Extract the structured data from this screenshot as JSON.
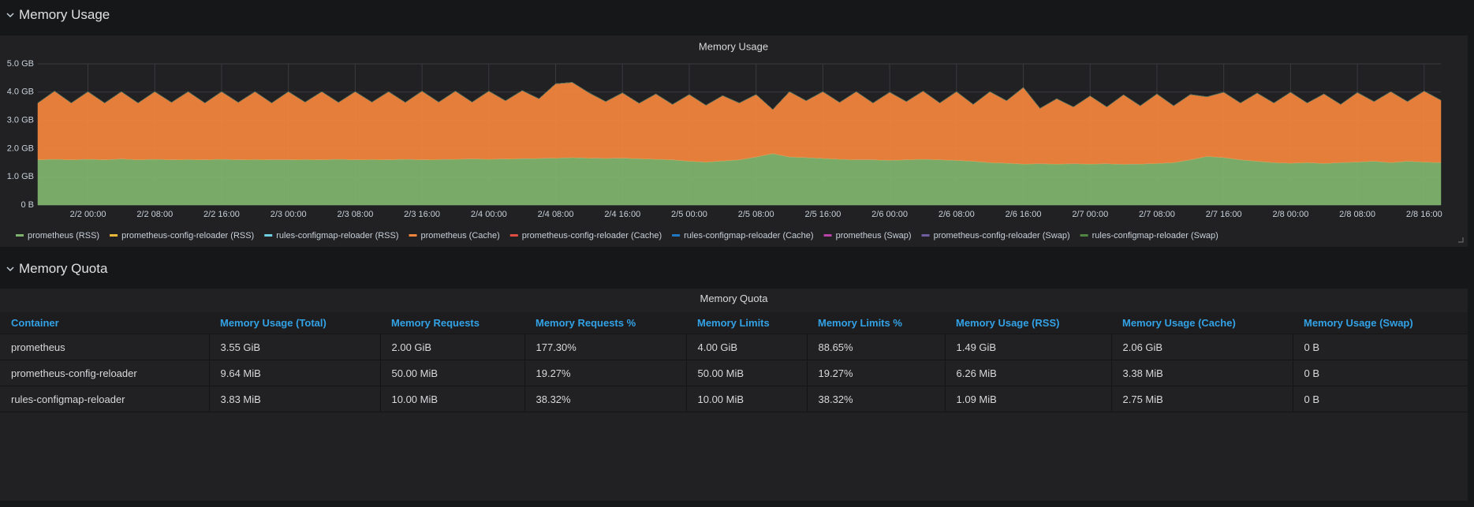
{
  "rows": [
    {
      "title": "Memory Usage"
    },
    {
      "title": "Memory Quota"
    }
  ],
  "chart_data": {
    "type": "area",
    "title": "Memory Usage",
    "stacked": true,
    "grid": true,
    "x": [
      "2/1 18:00",
      "2/1 20:00",
      "2/1 22:00",
      "2/2 00:00",
      "2/2 02:00",
      "2/2 04:00",
      "2/2 06:00",
      "2/2 08:00",
      "2/2 10:00",
      "2/2 12:00",
      "2/2 14:00",
      "2/2 16:00",
      "2/2 18:00",
      "2/2 20:00",
      "2/2 22:00",
      "2/3 00:00",
      "2/3 02:00",
      "2/3 04:00",
      "2/3 06:00",
      "2/3 08:00",
      "2/3 10:00",
      "2/3 12:00",
      "2/3 14:00",
      "2/3 16:00",
      "2/3 18:00",
      "2/3 20:00",
      "2/3 22:00",
      "2/4 00:00",
      "2/4 02:00",
      "2/4 04:00",
      "2/4 06:00",
      "2/4 08:00",
      "2/4 10:00",
      "2/4 12:00",
      "2/4 14:00",
      "2/4 16:00",
      "2/4 18:00",
      "2/4 20:00",
      "2/4 22:00",
      "2/5 00:00",
      "2/5 02:00",
      "2/5 04:00",
      "2/5 06:00",
      "2/5 08:00",
      "2/5 10:00",
      "2/5 12:00",
      "2/5 14:00",
      "2/5 16:00",
      "2/5 18:00",
      "2/5 20:00",
      "2/5 22:00",
      "2/6 00:00",
      "2/6 02:00",
      "2/6 04:00",
      "2/6 06:00",
      "2/6 08:00",
      "2/6 10:00",
      "2/6 12:00",
      "2/6 14:00",
      "2/6 16:00",
      "2/6 18:00",
      "2/6 20:00",
      "2/6 22:00",
      "2/7 00:00",
      "2/7 02:00",
      "2/7 04:00",
      "2/7 06:00",
      "2/7 08:00",
      "2/7 10:00",
      "2/7 12:00",
      "2/7 14:00",
      "2/7 16:00",
      "2/7 18:00",
      "2/7 20:00",
      "2/7 22:00",
      "2/8 00:00",
      "2/8 02:00",
      "2/8 04:00",
      "2/8 06:00",
      "2/8 08:00",
      "2/8 10:00",
      "2/8 12:00",
      "2/8 14:00",
      "2/8 16:00",
      "2/8 18:00"
    ],
    "xticks": [
      "2/2 00:00",
      "2/2 08:00",
      "2/2 16:00",
      "2/3 00:00",
      "2/3 08:00",
      "2/3 16:00",
      "2/4 00:00",
      "2/4 08:00",
      "2/4 16:00",
      "2/5 00:00",
      "2/5 08:00",
      "2/5 16:00",
      "2/6 00:00",
      "2/6 08:00",
      "2/6 16:00",
      "2/7 00:00",
      "2/7 08:00",
      "2/7 16:00",
      "2/8 00:00",
      "2/8 08:00",
      "2/8 16:00"
    ],
    "ylim": [
      0,
      5
    ],
    "yticks": [
      {
        "value": 0,
        "label": "0 B"
      },
      {
        "value": 1,
        "label": "1.0 GB"
      },
      {
        "value": 2,
        "label": "2.0 GB"
      },
      {
        "value": 3,
        "label": "3.0 GB"
      },
      {
        "value": 4,
        "label": "4.0 GB"
      },
      {
        "value": 5,
        "label": "5.0 GB"
      }
    ],
    "series": [
      {
        "name": "prometheus (RSS)",
        "color": "#7eb26d",
        "values": [
          1.6,
          1.62,
          1.6,
          1.62,
          1.6,
          1.63,
          1.6,
          1.62,
          1.6,
          1.61,
          1.6,
          1.62,
          1.6,
          1.61,
          1.6,
          1.6,
          1.61,
          1.6,
          1.62,
          1.6,
          1.61,
          1.6,
          1.62,
          1.6,
          1.61,
          1.62,
          1.63,
          1.62,
          1.63,
          1.64,
          1.65,
          1.66,
          1.68,
          1.66,
          1.65,
          1.66,
          1.64,
          1.62,
          1.6,
          1.55,
          1.52,
          1.56,
          1.6,
          1.7,
          1.82,
          1.7,
          1.68,
          1.65,
          1.62,
          1.6,
          1.6,
          1.58,
          1.6,
          1.62,
          1.6,
          1.58,
          1.55,
          1.5,
          1.48,
          1.45,
          1.46,
          1.45,
          1.46,
          1.45,
          1.46,
          1.44,
          1.45,
          1.47,
          1.5,
          1.6,
          1.72,
          1.68,
          1.6,
          1.55,
          1.5,
          1.48,
          1.5,
          1.47,
          1.5,
          1.52,
          1.55,
          1.5,
          1.55,
          1.52,
          1.5
        ]
      },
      {
        "name": "prometheus-config-reloader (RSS)",
        "color": "#eab839",
        "values": [
          0.007,
          0.007,
          0.007,
          0.007,
          0.007,
          0.007,
          0.007,
          0.007,
          0.007,
          0.007,
          0.007,
          0.007,
          0.007,
          0.007,
          0.007,
          0.007,
          0.007,
          0.007,
          0.007,
          0.007,
          0.007,
          0.007,
          0.007,
          0.007,
          0.007,
          0.007,
          0.007,
          0.007,
          0.007,
          0.007,
          0.007,
          0.007,
          0.007,
          0.007,
          0.007,
          0.007,
          0.007,
          0.007,
          0.007,
          0.007,
          0.007,
          0.007,
          0.007,
          0.007,
          0.007,
          0.007,
          0.007,
          0.007,
          0.007,
          0.007,
          0.007,
          0.007,
          0.007,
          0.007,
          0.007,
          0.007,
          0.007,
          0.007,
          0.007,
          0.007,
          0.007,
          0.007,
          0.007,
          0.007,
          0.007,
          0.007,
          0.007,
          0.007,
          0.007,
          0.007,
          0.007,
          0.007,
          0.007,
          0.007,
          0.007,
          0.007,
          0.007,
          0.007,
          0.007,
          0.007,
          0.007,
          0.007,
          0.007,
          0.007,
          0.007
        ]
      },
      {
        "name": "rules-configmap-reloader (RSS)",
        "color": "#6ed0e0",
        "values": [
          0.001,
          0.001,
          0.001,
          0.001,
          0.001,
          0.001,
          0.001,
          0.001,
          0.001,
          0.001,
          0.001,
          0.001,
          0.001,
          0.001,
          0.001,
          0.001,
          0.001,
          0.001,
          0.001,
          0.001,
          0.001,
          0.001,
          0.001,
          0.001,
          0.001,
          0.001,
          0.001,
          0.001,
          0.001,
          0.001,
          0.001,
          0.001,
          0.001,
          0.001,
          0.001,
          0.001,
          0.001,
          0.001,
          0.001,
          0.001,
          0.001,
          0.001,
          0.001,
          0.001,
          0.001,
          0.001,
          0.001,
          0.001,
          0.001,
          0.001,
          0.001,
          0.001,
          0.001,
          0.001,
          0.001,
          0.001,
          0.001,
          0.001,
          0.001,
          0.001,
          0.001,
          0.001,
          0.001,
          0.001,
          0.001,
          0.001,
          0.001,
          0.001,
          0.001,
          0.001,
          0.001,
          0.001,
          0.001,
          0.001,
          0.001,
          0.001,
          0.001,
          0.001,
          0.001,
          0.001,
          0.001,
          0.001,
          0.001,
          0.001,
          0.001
        ]
      },
      {
        "name": "prometheus (Cache)",
        "color": "#ef843c",
        "values": [
          2.0,
          2.4,
          2.0,
          2.38,
          2.0,
          2.37,
          2.0,
          2.38,
          2.02,
          2.39,
          2.0,
          2.38,
          2.02,
          2.39,
          2.0,
          2.4,
          2.02,
          2.4,
          2.0,
          2.4,
          2.02,
          2.4,
          2.0,
          2.42,
          2.02,
          2.4,
          2.0,
          2.4,
          2.05,
          2.4,
          2.1,
          2.62,
          2.65,
          2.3,
          2.0,
          2.3,
          1.95,
          2.3,
          1.95,
          2.35,
          2.0,
          2.3,
          2.0,
          2.2,
          1.55,
          2.3,
          2.0,
          2.35,
          2.0,
          2.4,
          2.0,
          2.4,
          2.05,
          2.4,
          2.0,
          2.42,
          2.0,
          2.5,
          2.2,
          2.7,
          1.95,
          2.3,
          2.0,
          2.4,
          2.0,
          2.45,
          2.05,
          2.45,
          2.0,
          2.3,
          2.1,
          2.3,
          2.0,
          2.4,
          2.1,
          2.5,
          2.1,
          2.45,
          2.05,
          2.45,
          2.1,
          2.5,
          2.1,
          2.5,
          2.2
        ]
      },
      {
        "name": "prometheus-config-reloader (Cache)",
        "color": "#e24d42",
        "values": [
          0.004,
          0.004,
          0.004,
          0.004,
          0.004,
          0.004,
          0.004,
          0.004,
          0.004,
          0.004,
          0.004,
          0.004,
          0.004,
          0.004,
          0.004,
          0.004,
          0.004,
          0.004,
          0.004,
          0.004,
          0.004,
          0.004,
          0.004,
          0.004,
          0.004,
          0.004,
          0.004,
          0.004,
          0.004,
          0.004,
          0.004,
          0.004,
          0.004,
          0.004,
          0.004,
          0.004,
          0.004,
          0.004,
          0.004,
          0.004,
          0.004,
          0.004,
          0.004,
          0.004,
          0.004,
          0.004,
          0.004,
          0.004,
          0.004,
          0.004,
          0.004,
          0.004,
          0.004,
          0.004,
          0.004,
          0.004,
          0.004,
          0.004,
          0.004,
          0.004,
          0.004,
          0.004,
          0.004,
          0.004,
          0.004,
          0.004,
          0.004,
          0.004,
          0.004,
          0.004,
          0.004,
          0.004,
          0.004,
          0.004,
          0.004,
          0.004,
          0.004,
          0.004,
          0.004,
          0.004,
          0.004,
          0.004,
          0.004,
          0.004,
          0.004
        ]
      },
      {
        "name": "rules-configmap-reloader (Cache)",
        "color": "#1f78c1",
        "values": [
          0.003,
          0.003,
          0.003,
          0.003,
          0.003,
          0.003,
          0.003,
          0.003,
          0.003,
          0.003,
          0.003,
          0.003,
          0.003,
          0.003,
          0.003,
          0.003,
          0.003,
          0.003,
          0.003,
          0.003,
          0.003,
          0.003,
          0.003,
          0.003,
          0.003,
          0.003,
          0.003,
          0.003,
          0.003,
          0.003,
          0.003,
          0.003,
          0.003,
          0.003,
          0.003,
          0.003,
          0.003,
          0.003,
          0.003,
          0.003,
          0.003,
          0.003,
          0.003,
          0.003,
          0.003,
          0.003,
          0.003,
          0.003,
          0.003,
          0.003,
          0.003,
          0.003,
          0.003,
          0.003,
          0.003,
          0.003,
          0.003,
          0.003,
          0.003,
          0.003,
          0.003,
          0.003,
          0.003,
          0.003,
          0.003,
          0.003,
          0.003,
          0.003,
          0.003,
          0.003,
          0.003,
          0.003,
          0.003,
          0.003,
          0.003,
          0.003,
          0.003,
          0.003,
          0.003,
          0.003,
          0.003,
          0.003,
          0.003,
          0.003,
          0.003
        ]
      },
      {
        "name": "prometheus (Swap)",
        "color": "#ba43a9",
        "values": [
          0,
          0,
          0,
          0,
          0,
          0,
          0,
          0,
          0,
          0,
          0,
          0,
          0,
          0,
          0,
          0,
          0,
          0,
          0,
          0,
          0,
          0,
          0,
          0,
          0,
          0,
          0,
          0,
          0,
          0,
          0,
          0,
          0,
          0,
          0,
          0,
          0,
          0,
          0,
          0,
          0,
          0,
          0,
          0,
          0,
          0,
          0,
          0,
          0,
          0,
          0,
          0,
          0,
          0,
          0,
          0,
          0,
          0,
          0,
          0,
          0,
          0,
          0,
          0,
          0,
          0,
          0,
          0,
          0,
          0,
          0,
          0,
          0,
          0,
          0,
          0,
          0,
          0,
          0,
          0,
          0,
          0,
          0,
          0,
          0
        ]
      },
      {
        "name": "prometheus-config-reloader (Swap)",
        "color": "#705da0",
        "values": [
          0,
          0,
          0,
          0,
          0,
          0,
          0,
          0,
          0,
          0,
          0,
          0,
          0,
          0,
          0,
          0,
          0,
          0,
          0,
          0,
          0,
          0,
          0,
          0,
          0,
          0,
          0,
          0,
          0,
          0,
          0,
          0,
          0,
          0,
          0,
          0,
          0,
          0,
          0,
          0,
          0,
          0,
          0,
          0,
          0,
          0,
          0,
          0,
          0,
          0,
          0,
          0,
          0,
          0,
          0,
          0,
          0,
          0,
          0,
          0,
          0,
          0,
          0,
          0,
          0,
          0,
          0,
          0,
          0,
          0,
          0,
          0,
          0,
          0,
          0,
          0,
          0,
          0,
          0,
          0,
          0,
          0,
          0,
          0,
          0
        ]
      },
      {
        "name": "rules-configmap-reloader (Swap)",
        "color": "#508642",
        "values": [
          0,
          0,
          0,
          0,
          0,
          0,
          0,
          0,
          0,
          0,
          0,
          0,
          0,
          0,
          0,
          0,
          0,
          0,
          0,
          0,
          0,
          0,
          0,
          0,
          0,
          0,
          0,
          0,
          0,
          0,
          0,
          0,
          0,
          0,
          0,
          0,
          0,
          0,
          0,
          0,
          0,
          0,
          0,
          0,
          0,
          0,
          0,
          0,
          0,
          0,
          0,
          0,
          0,
          0,
          0,
          0,
          0,
          0,
          0,
          0,
          0,
          0,
          0,
          0,
          0,
          0,
          0,
          0,
          0,
          0,
          0,
          0,
          0,
          0,
          0,
          0,
          0,
          0,
          0,
          0,
          0,
          0,
          0,
          0,
          0
        ]
      }
    ]
  },
  "table": {
    "title": "Memory Quota",
    "columns": [
      "Container",
      "Memory Usage (Total)",
      "Memory Requests",
      "Memory Requests %",
      "Memory Limits",
      "Memory Limits %",
      "Memory Usage (RSS)",
      "Memory Usage (Cache)",
      "Memory Usage (Swap)"
    ],
    "rows": [
      [
        "prometheus",
        "3.55 GiB",
        "2.00 GiB",
        "177.30%",
        "4.00 GiB",
        "88.65%",
        "1.49 GiB",
        "2.06 GiB",
        "0 B"
      ],
      [
        "prometheus-config-reloader",
        "9.64 MiB",
        "50.00 MiB",
        "19.27%",
        "50.00 MiB",
        "19.27%",
        "6.26 MiB",
        "3.38 MiB",
        "0 B"
      ],
      [
        "rules-configmap-reloader",
        "3.83 MiB",
        "10.00 MiB",
        "38.32%",
        "10.00 MiB",
        "38.32%",
        "1.09 MiB",
        "2.75 MiB",
        "0 B"
      ]
    ]
  }
}
